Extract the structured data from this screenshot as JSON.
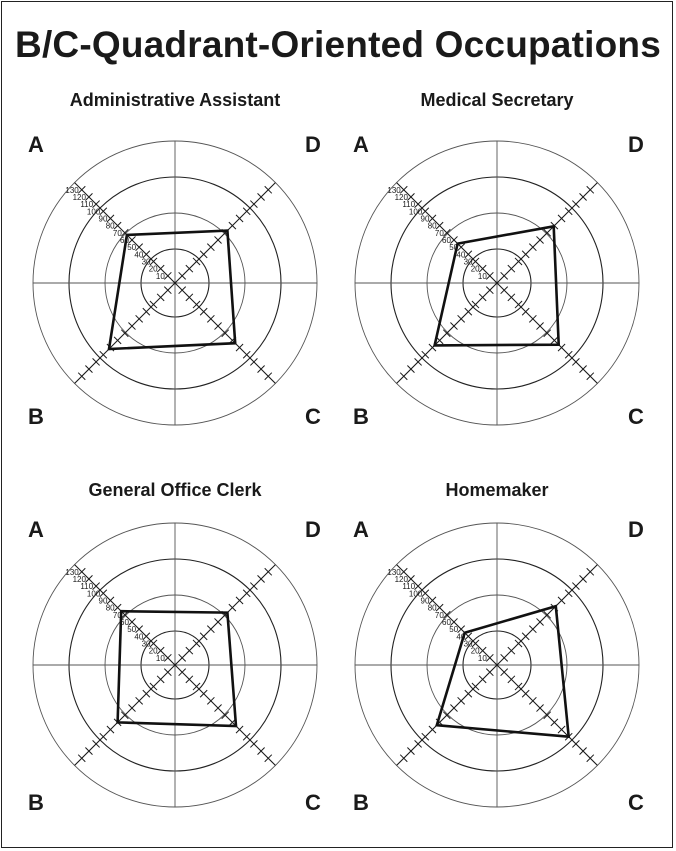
{
  "page": {
    "title": "B/C-Quadrant-Oriented Occupations"
  },
  "quadrant_labels": {
    "A": "A",
    "B": "B",
    "C": "C",
    "D": "D"
  },
  "chart_data": [
    {
      "type": "radar",
      "title": "Administrative Assistant",
      "axes": [
        "A",
        "D",
        "C",
        "B"
      ],
      "tick_labels": [
        "10",
        "20",
        "30",
        "40",
        "50",
        "60",
        "70",
        "80",
        "90",
        "100",
        "110",
        "120",
        "130"
      ],
      "rlim": [
        0,
        140
      ],
      "values": {
        "A": 67,
        "D": 73,
        "C": 84,
        "B": 92
      }
    },
    {
      "type": "radar",
      "title": "Medical Secretary",
      "axes": [
        "A",
        "D",
        "C",
        "B"
      ],
      "tick_labels": [
        "10",
        "20",
        "30",
        "40",
        "50",
        "60",
        "70",
        "80",
        "90",
        "100",
        "110",
        "120",
        "130"
      ],
      "rlim": [
        0,
        140
      ],
      "values": {
        "A": 55,
        "D": 79,
        "C": 86,
        "B": 87
      }
    },
    {
      "type": "radar",
      "title": "General Office Clerk",
      "axes": [
        "A",
        "D",
        "C",
        "B"
      ],
      "tick_labels": [
        "10",
        "20",
        "30",
        "40",
        "50",
        "60",
        "70",
        "80",
        "90",
        "100",
        "110",
        "120",
        "130"
      ],
      "rlim": [
        0,
        140
      ],
      "values": {
        "A": 75,
        "D": 73,
        "C": 85,
        "B": 80
      }
    },
    {
      "type": "radar",
      "title": "Homemaker",
      "axes": [
        "A",
        "D",
        "C",
        "B"
      ],
      "tick_labels": [
        "10",
        "20",
        "30",
        "40",
        "50",
        "60",
        "70",
        "80",
        "90",
        "100",
        "110",
        "120",
        "130"
      ],
      "rlim": [
        0,
        140
      ],
      "values": {
        "A": 45,
        "D": 82,
        "C": 100,
        "B": 84
      }
    }
  ]
}
